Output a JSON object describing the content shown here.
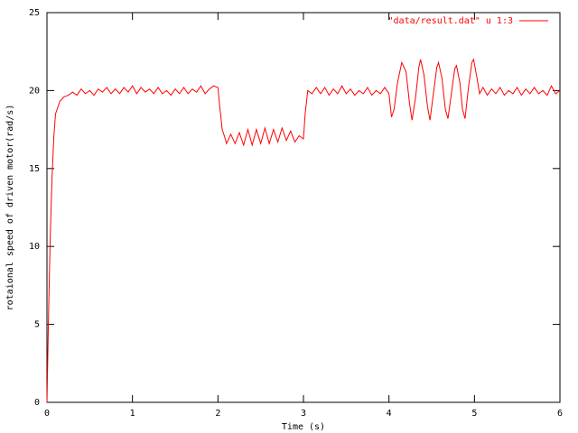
{
  "chart_data": {
    "type": "line",
    "xlabel": "Time (s)",
    "ylabel": "rotaional speed of driven motor(rad/s)",
    "xlim": [
      0,
      6
    ],
    "ylim": [
      0,
      25
    ],
    "xticks": [
      0,
      1,
      2,
      3,
      4,
      5,
      6
    ],
    "yticks": [
      0,
      5,
      10,
      15,
      20,
      25
    ],
    "legend": "top-right",
    "x": [
      0,
      0.02,
      0.04,
      0.06,
      0.08,
      0.1,
      0.15,
      0.2,
      0.25,
      0.3,
      0.35,
      0.4,
      0.45,
      0.5,
      0.55,
      0.6,
      0.65,
      0.7,
      0.75,
      0.8,
      0.85,
      0.9,
      0.95,
      1.0,
      1.05,
      1.1,
      1.15,
      1.2,
      1.25,
      1.3,
      1.35,
      1.4,
      1.45,
      1.5,
      1.55,
      1.6,
      1.65,
      1.7,
      1.75,
      1.8,
      1.85,
      1.9,
      1.95,
      2.0,
      2.02,
      2.05,
      2.08,
      2.1,
      2.15,
      2.2,
      2.25,
      2.3,
      2.35,
      2.4,
      2.45,
      2.5,
      2.55,
      2.6,
      2.65,
      2.7,
      2.75,
      2.8,
      2.85,
      2.9,
      2.95,
      3.0,
      3.02,
      3.05,
      3.1,
      3.15,
      3.2,
      3.25,
      3.3,
      3.35,
      3.4,
      3.45,
      3.5,
      3.55,
      3.6,
      3.65,
      3.7,
      3.75,
      3.8,
      3.85,
      3.9,
      3.95,
      4.0,
      4.03,
      4.06,
      4.1,
      4.15,
      4.2,
      4.24,
      4.27,
      4.31,
      4.35,
      4.37,
      4.41,
      4.45,
      4.48,
      4.52,
      4.56,
      4.58,
      4.62,
      4.66,
      4.69,
      4.73,
      4.77,
      4.79,
      4.83,
      4.86,
      4.89,
      4.93,
      4.97,
      4.99,
      5.03,
      5.06,
      5.1,
      5.15,
      5.2,
      5.25,
      5.3,
      5.35,
      5.4,
      5.45,
      5.5,
      5.55,
      5.6,
      5.65,
      5.7,
      5.75,
      5.8,
      5.85,
      5.9,
      5.95,
      6.0
    ],
    "series": [
      {
        "name": "\"data/result.dat\" u 1:3",
        "color": "#ff0000",
        "values": [
          0,
          6,
          11,
          14.5,
          17,
          18.5,
          19.3,
          19.6,
          19.7,
          19.9,
          19.7,
          20.1,
          19.8,
          20.0,
          19.7,
          20.1,
          19.9,
          20.2,
          19.8,
          20.1,
          19.8,
          20.2,
          19.9,
          20.3,
          19.8,
          20.2,
          19.9,
          20.1,
          19.8,
          20.2,
          19.8,
          20.0,
          19.7,
          20.1,
          19.8,
          20.2,
          19.8,
          20.1,
          19.9,
          20.3,
          19.8,
          20.1,
          20.3,
          20.2,
          19.0,
          17.5,
          17.0,
          16.6,
          17.2,
          16.6,
          17.3,
          16.5,
          17.5,
          16.5,
          17.5,
          16.6,
          17.6,
          16.6,
          17.5,
          16.7,
          17.6,
          16.8,
          17.4,
          16.7,
          17.1,
          16.9,
          18.5,
          20.0,
          19.8,
          20.2,
          19.8,
          20.2,
          19.7,
          20.1,
          19.8,
          20.3,
          19.8,
          20.1,
          19.7,
          20.0,
          19.8,
          20.2,
          19.7,
          20.0,
          19.8,
          20.2,
          19.8,
          18.3,
          18.8,
          20.5,
          21.8,
          21.2,
          19.2,
          18.1,
          19.5,
          21.5,
          22.0,
          21.0,
          19.0,
          18.1,
          19.8,
          21.5,
          21.8,
          20.8,
          18.8,
          18.2,
          19.8,
          21.4,
          21.6,
          20.5,
          18.8,
          18.2,
          20.2,
          21.8,
          22.0,
          20.8,
          19.8,
          20.2,
          19.7,
          20.1,
          19.8,
          20.2,
          19.7,
          20.0,
          19.8,
          20.2,
          19.7,
          20.1,
          19.8,
          20.2,
          19.8,
          20.0,
          19.7,
          20.3,
          19.8,
          20.0
        ]
      }
    ]
  }
}
